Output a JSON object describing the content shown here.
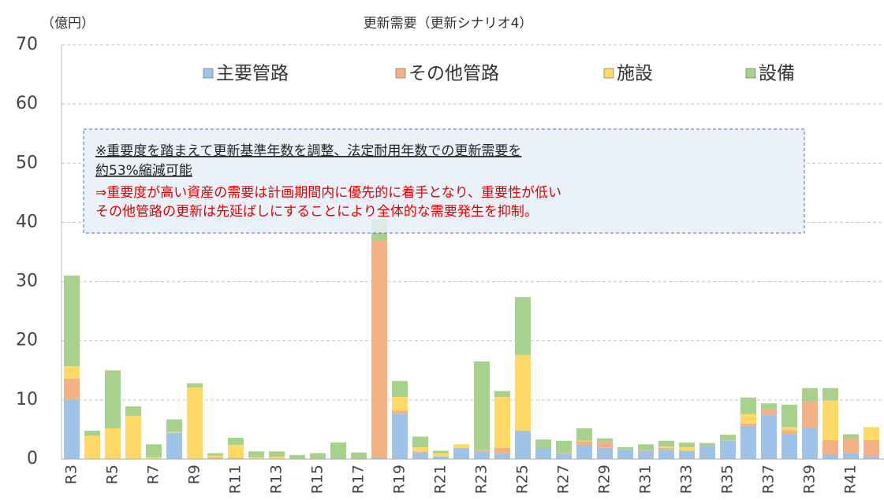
{
  "chart_data": {
    "type": "stacked_bar",
    "title": "更新需要（更新シナリオ4）",
    "y_label": "（億円）",
    "annotations": [
      "※重要度を踏まえて更新基準年数を調整、法定耐用年数での更新需要を",
      "約53%縮減可能",
      "⇒重要度が高い資産の需要は計画期間内に優先的に着手となり、重要性が低い",
      "その他管路の更新は先延ばしにすることにより全体的な需要発生を抑制。"
    ],
    "categories": [
      "R3",
      null,
      "R5",
      null,
      "R7",
      null,
      "R9",
      null,
      "R11",
      null,
      "R13",
      null,
      "R15",
      null,
      "R17",
      null,
      "R19",
      null,
      "R21",
      null,
      "R23",
      null,
      "R25",
      null,
      "R27",
      null,
      "R29",
      null,
      "R31",
      null,
      "R33",
      null,
      "R35",
      null,
      "R37",
      null,
      "R39",
      null,
      "R41",
      null
    ],
    "series": [
      {
        "name": "主要管路",
        "color": "#9dc3e6",
        "values": [
          10.0,
          0,
          0,
          0,
          0,
          4.4,
          0,
          0,
          0,
          0,
          0,
          0,
          0,
          0,
          0,
          0.2,
          7.6,
          1.1,
          0.4,
          1.9,
          1.3,
          0.9,
          4.8,
          1.8,
          0.9,
          2.4,
          1.9,
          1.5,
          1.4,
          1.5,
          1.4,
          2.2,
          3.1,
          5.6,
          7.5,
          4.2,
          5.2,
          0.8,
          1.0,
          0.4
        ]
      },
      {
        "name": "その他管路",
        "color": "#f4b183",
        "values": [
          3.6,
          0,
          0,
          0,
          0,
          0,
          0,
          0.3,
          0.2,
          0,
          0.1,
          0,
          0,
          0,
          0,
          36.7,
          0.6,
          0.2,
          0,
          0,
          0.2,
          1.0,
          0,
          0,
          0.2,
          0.6,
          0.9,
          0.1,
          0.1,
          0.4,
          0,
          0,
          0,
          0.4,
          1.0,
          0.7,
          4.5,
          2.4,
          2.4,
          2.8
        ]
      },
      {
        "name": "施設",
        "color": "#ffd966",
        "values": [
          2.1,
          3.9,
          5.2,
          7.3,
          0.3,
          0.2,
          12.1,
          0.3,
          2.2,
          0.3,
          0.3,
          0,
          0,
          0,
          0,
          0,
          2.3,
          0.7,
          0.6,
          0.6,
          0,
          8.6,
          12.8,
          0,
          0,
          0.1,
          0,
          0,
          0,
          0.2,
          0.6,
          0,
          0,
          1.6,
          0,
          0.5,
          0,
          6.7,
          0,
          2.2
        ]
      },
      {
        "name": "設備",
        "color": "#a9d18e",
        "values": [
          15.3,
          0.9,
          9.8,
          1.6,
          2.2,
          2.1,
          0.7,
          0.4,
          1.2,
          1.0,
          0.9,
          0.7,
          1.0,
          2.8,
          1.1,
          3.6,
          2.7,
          1.8,
          0.4,
          0,
          15.0,
          1.0,
          9.8,
          1.5,
          2.0,
          2.1,
          0.7,
          0.4,
          1.0,
          1.0,
          0.8,
          0.5,
          1.0,
          2.8,
          0.9,
          3.8,
          2.3,
          2.1,
          0.8,
          0
        ]
      }
    ],
    "ylim": [
      0,
      70
    ],
    "yticks": [
      0,
      10,
      20,
      30,
      40,
      50,
      60,
      70
    ],
    "grid": true
  }
}
